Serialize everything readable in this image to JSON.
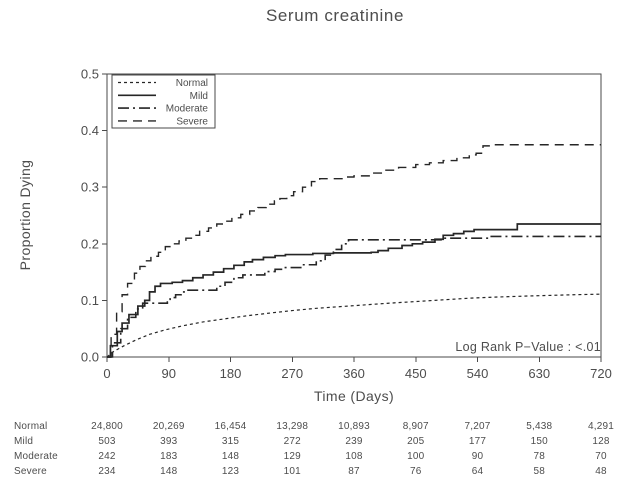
{
  "title": "Serum creatinine",
  "colors": {
    "background": "#ffffff",
    "text": "#4d4d4d",
    "frame": "#4a4a4a",
    "line": "#262626"
  },
  "annotation": "Log Rank P−Value : <.01",
  "chart_data": {
    "type": "line",
    "subtype": "kaplan-meier-cumulative-incidence",
    "title": "Serum creatinine",
    "xlabel": "Time (Days)",
    "ylabel": "Proportion Dying",
    "xlim": [
      0,
      720
    ],
    "ylim": [
      0,
      0.5
    ],
    "xticks": [
      0,
      90,
      180,
      270,
      360,
      450,
      540,
      630,
      720
    ],
    "ytick_labels": [
      "0.0",
      "0.1",
      "0.2",
      "0.3",
      "0.4",
      "0.5"
    ],
    "grid": false,
    "legend_position": "top-left",
    "annotation": "Log Rank P−Value : <.01",
    "series": [
      {
        "name": "Normal",
        "dash": "short-dash",
        "interp": "linear",
        "x": [
          0,
          10,
          25,
          42,
          62,
          85,
          110,
          140,
          175,
          205,
          240,
          270,
          305,
          340,
          375,
          410,
          450,
          490,
          530,
          570,
          620,
          680,
          720
        ],
        "y": [
          0,
          0.01,
          0.02,
          0.03,
          0.04,
          0.048,
          0.055,
          0.062,
          0.068,
          0.073,
          0.078,
          0.082,
          0.086,
          0.089,
          0.092,
          0.095,
          0.098,
          0.101,
          0.104,
          0.106,
          0.108,
          0.11,
          0.111
        ]
      },
      {
        "name": "Mild",
        "dash": "solid",
        "interp": "step",
        "x": [
          0,
          5,
          15,
          22,
          32,
          45,
          55,
          62,
          70,
          78,
          95,
          110,
          125,
          140,
          155,
          170,
          185,
          200,
          212,
          228,
          245,
          260,
          300,
          330,
          385,
          395,
          410,
          430,
          445,
          460,
          478,
          490,
          505,
          520,
          535,
          598,
          720
        ],
        "y": [
          0,
          0.02,
          0.045,
          0.06,
          0.075,
          0.09,
          0.1,
          0.115,
          0.125,
          0.13,
          0.132,
          0.135,
          0.14,
          0.145,
          0.15,
          0.156,
          0.162,
          0.168,
          0.172,
          0.176,
          0.179,
          0.181,
          0.183,
          0.184,
          0.185,
          0.188,
          0.192,
          0.197,
          0.2,
          0.203,
          0.208,
          0.215,
          0.218,
          0.222,
          0.225,
          0.235,
          0.235
        ]
      },
      {
        "name": "Moderate",
        "dash": "dash-dot",
        "interp": "step",
        "x": [
          0,
          8,
          20,
          30,
          42,
          52,
          88,
          92,
          100,
          108,
          115,
          160,
          172,
          185,
          198,
          230,
          245,
          258,
          285,
          305,
          318,
          330,
          342,
          352,
          480,
          490,
          558,
          720
        ],
        "y": [
          0,
          0.025,
          0.05,
          0.07,
          0.085,
          0.095,
          0.097,
          0.105,
          0.11,
          0.115,
          0.118,
          0.125,
          0.132,
          0.14,
          0.145,
          0.151,
          0.155,
          0.158,
          0.163,
          0.17,
          0.18,
          0.19,
          0.2,
          0.207,
          0.207,
          0.21,
          0.213,
          0.213
        ]
      },
      {
        "name": "Severe",
        "dash": "long-dash",
        "interp": "step",
        "x": [
          0,
          6,
          14,
          22,
          30,
          40,
          48,
          56,
          64,
          75,
          85,
          95,
          105,
          115,
          125,
          135,
          148,
          160,
          170,
          182,
          195,
          208,
          220,
          232,
          244,
          252,
          262,
          272,
          285,
          298,
          310,
          345,
          360,
          385,
          405,
          425,
          450,
          470,
          490,
          510,
          528,
          538,
          548,
          560,
          720
        ],
        "y": [
          0,
          0.04,
          0.08,
          0.11,
          0.13,
          0.148,
          0.16,
          0.17,
          0.178,
          0.185,
          0.195,
          0.2,
          0.205,
          0.21,
          0.215,
          0.222,
          0.228,
          0.235,
          0.24,
          0.246,
          0.252,
          0.258,
          0.264,
          0.27,
          0.276,
          0.28,
          0.285,
          0.292,
          0.3,
          0.31,
          0.315,
          0.318,
          0.32,
          0.325,
          0.33,
          0.335,
          0.34,
          0.343,
          0.347,
          0.352,
          0.357,
          0.36,
          0.373,
          0.375,
          0.375
        ]
      }
    ]
  },
  "risk_table": {
    "columns": [
      0,
      90,
      180,
      270,
      360,
      450,
      540,
      630,
      720
    ],
    "rows": [
      {
        "label": "Normal",
        "values": [
          "24,800",
          "20,269",
          "16,454",
          "13,298",
          "10,893",
          "8,907",
          "7,207",
          "5,438",
          "4,291"
        ]
      },
      {
        "label": "Mild",
        "values": [
          "503",
          "393",
          "315",
          "272",
          "239",
          "205",
          "177",
          "150",
          "128"
        ]
      },
      {
        "label": "Moderate",
        "values": [
          "242",
          "183",
          "148",
          "129",
          "108",
          "100",
          "90",
          "78",
          "70"
        ]
      },
      {
        "label": "Severe",
        "values": [
          "234",
          "148",
          "123",
          "101",
          "87",
          "76",
          "64",
          "58",
          "48"
        ]
      }
    ]
  }
}
